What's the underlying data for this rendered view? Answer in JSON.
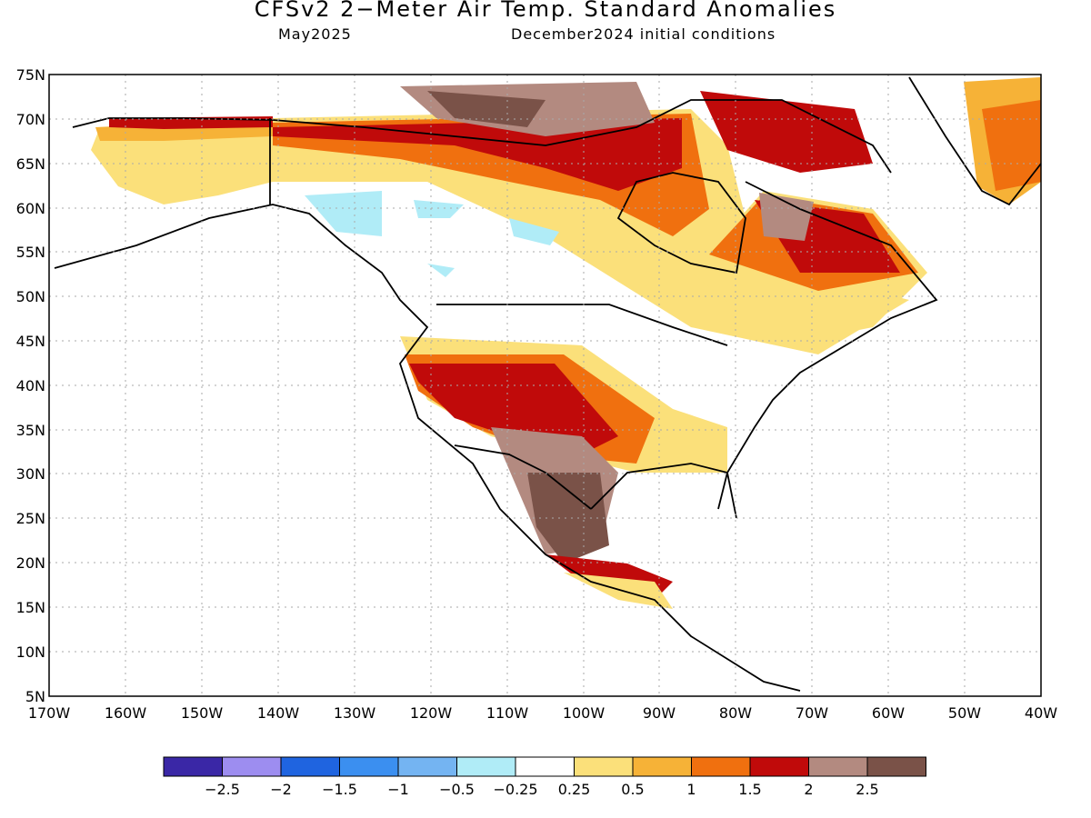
{
  "title": "CFSv2 2−Meter Air Temp. Standard Anomalies",
  "valid_month": "May2025",
  "initial_conditions": "December2024 initial conditions",
  "lat_labels": [
    "75N",
    "70N",
    "65N",
    "60N",
    "55N",
    "50N",
    "45N",
    "40N",
    "35N",
    "30N",
    "25N",
    "20N",
    "15N",
    "10N",
    "5N"
  ],
  "lon_labels": [
    "170W",
    "160W",
    "150W",
    "140W",
    "130W",
    "120W",
    "110W",
    "100W",
    "90W",
    "80W",
    "70W",
    "60W",
    "50W",
    "40W"
  ],
  "colorbar": {
    "colors": [
      "#3a27a6",
      "#9d8df0",
      "#1f64e0",
      "#3b8ff0",
      "#74b4f2",
      "#b0ecf7",
      "#ffffff",
      "#fbe07a",
      "#f6b237",
      "#f0700f",
      "#c00a0a",
      "#b38a80",
      "#7a5248"
    ],
    "labels": [
      "−2.5",
      "−2",
      "−1.5",
      "−1",
      "−0.5",
      "−0.25",
      "0.25",
      "0.5",
      "1",
      "1.5",
      "2",
      "2.5"
    ]
  },
  "colors": {
    "yellow": "#fbe07a",
    "lightorange": "#f6b237",
    "orange": "#f0700f",
    "red": "#c00a0a",
    "lightbrown": "#b38a80",
    "darkbrown": "#7a5248",
    "lightblue": "#b0ecf7"
  }
}
